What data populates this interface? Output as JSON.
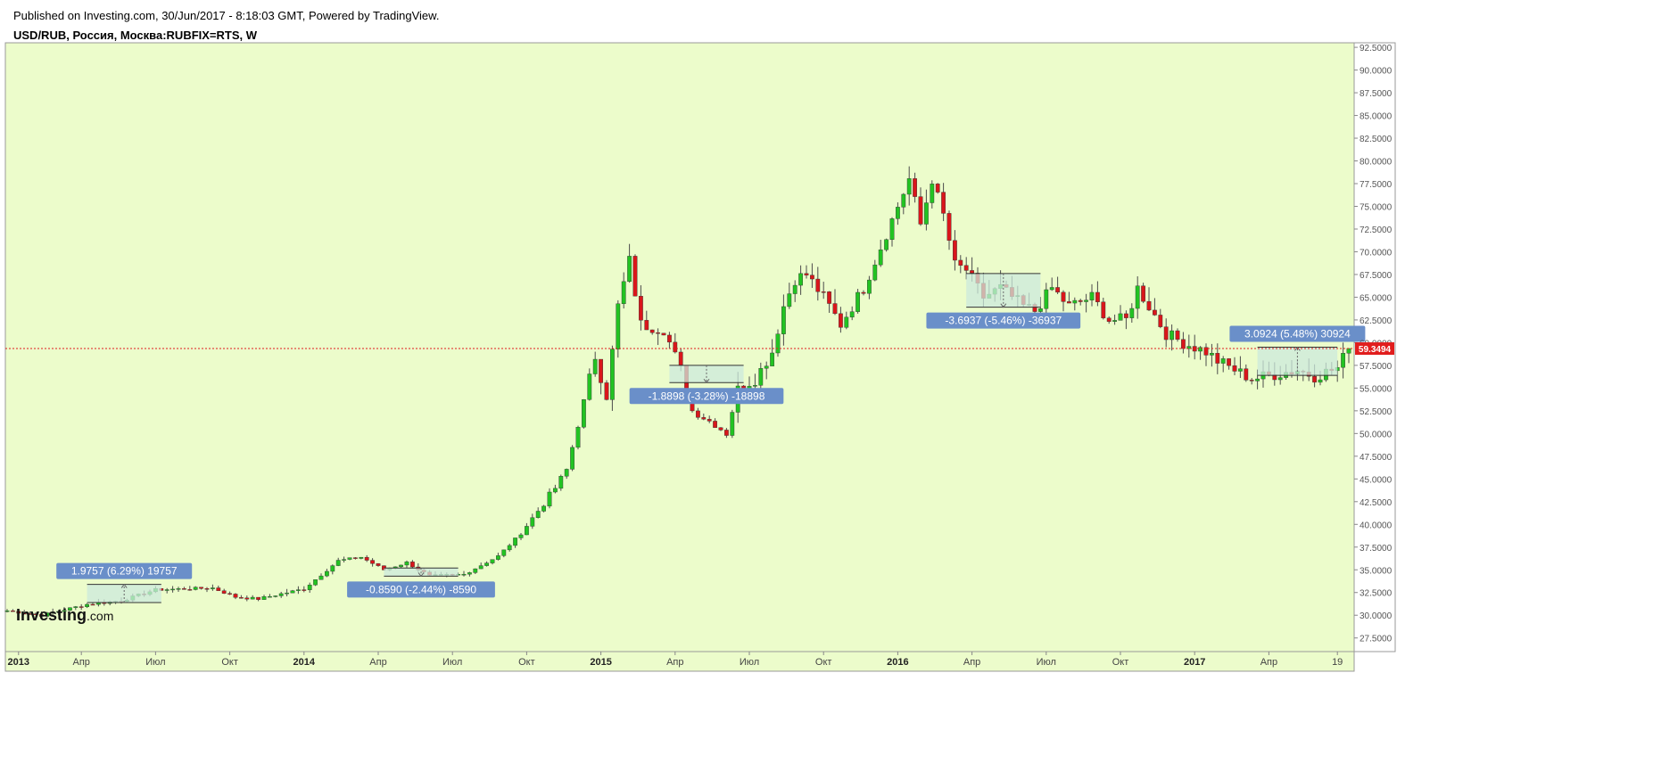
{
  "header": {
    "published": "Published on Investing.com, 30/Jun/2017 - 8:18:03 GMT, Powered by TradingView.",
    "symbol": "USD/RUB, Россия, Москва:RUBFIX=RTS, W"
  },
  "logo": {
    "brand": "Investing",
    "suffix": ".com"
  },
  "colors": {
    "plot_bg": "#ecfccb",
    "up": "#22c322",
    "down": "#d9161b",
    "wick": "#4b4b4b",
    "price_line": "#e11d1d",
    "label_bg": "#6a8fc9",
    "box_fill": "#cce9dc"
  },
  "chart_data": {
    "type": "candlestick",
    "interval": "W",
    "ylim": [
      26,
      93
    ],
    "y_ticks": [
      "27.5000",
      "30.0000",
      "32.5000",
      "35.0000",
      "37.5000",
      "40.0000",
      "42.5000",
      "45.0000",
      "47.5000",
      "50.0000",
      "52.5000",
      "55.0000",
      "57.5000",
      "60.0000",
      "62.5000",
      "65.0000",
      "67.5000",
      "70.0000",
      "72.5000",
      "75.0000",
      "77.5000",
      "80.0000",
      "82.5000",
      "85.0000",
      "87.5000",
      "90.0000",
      "92.5000"
    ],
    "x_ticks": [
      {
        "label": "2013",
        "bold": true,
        "week": 2
      },
      {
        "label": "Апр",
        "bold": false,
        "week": 13
      },
      {
        "label": "Июл",
        "bold": false,
        "week": 26
      },
      {
        "label": "Окт",
        "bold": false,
        "week": 39
      },
      {
        "label": "2014",
        "bold": true,
        "week": 52
      },
      {
        "label": "Апр",
        "bold": false,
        "week": 65
      },
      {
        "label": "Июл",
        "bold": false,
        "week": 78
      },
      {
        "label": "Окт",
        "bold": false,
        "week": 91
      },
      {
        "label": "2015",
        "bold": true,
        "week": 104
      },
      {
        "label": "Апр",
        "bold": false,
        "week": 117
      },
      {
        "label": "Июл",
        "bold": false,
        "week": 130
      },
      {
        "label": "Окт",
        "bold": false,
        "week": 143
      },
      {
        "label": "2016",
        "bold": true,
        "week": 156
      },
      {
        "label": "Апр",
        "bold": false,
        "week": 169
      },
      {
        "label": "Июл",
        "bold": false,
        "week": 182
      },
      {
        "label": "Окт",
        "bold": false,
        "week": 195
      },
      {
        "label": "2017",
        "bold": true,
        "week": 208
      },
      {
        "label": "Апр",
        "bold": false,
        "week": 221
      },
      {
        "label": "19",
        "bold": false,
        "week": 233
      }
    ],
    "last_price": {
      "value": 59.3494,
      "label": "59.3494"
    },
    "close_anchors": [
      [
        0,
        30.5
      ],
      [
        6,
        30.0
      ],
      [
        14,
        31.2
      ],
      [
        20,
        31.6
      ],
      [
        26,
        32.8
      ],
      [
        36,
        33.0
      ],
      [
        40,
        32.0
      ],
      [
        44,
        31.8
      ],
      [
        52,
        32.9
      ],
      [
        58,
        36.0
      ],
      [
        62,
        36.4
      ],
      [
        66,
        35.0
      ],
      [
        70,
        35.8
      ],
      [
        74,
        34.3
      ],
      [
        80,
        34.5
      ],
      [
        86,
        36.5
      ],
      [
        90,
        39.0
      ],
      [
        96,
        44.0
      ],
      [
        98,
        46.0
      ],
      [
        100,
        51.0
      ],
      [
        103,
        58.5
      ],
      [
        105,
        54.0
      ],
      [
        107,
        64.0
      ],
      [
        109,
        69.0
      ],
      [
        111,
        62.0
      ],
      [
        115,
        61.5
      ],
      [
        118,
        57.0
      ],
      [
        120,
        52.5
      ],
      [
        124,
        51.0
      ],
      [
        126,
        50.0
      ],
      [
        128,
        55.0
      ],
      [
        131,
        56.0
      ],
      [
        134,
        59.0
      ],
      [
        136,
        64.0
      ],
      [
        138,
        67.0
      ],
      [
        140,
        67.5
      ],
      [
        143,
        65.0
      ],
      [
        146,
        62.0
      ],
      [
        150,
        66.0
      ],
      [
        154,
        72.0
      ],
      [
        158,
        78.0
      ],
      [
        160,
        73.0
      ],
      [
        162,
        78.0
      ],
      [
        164,
        74.0
      ],
      [
        166,
        68.5
      ],
      [
        168,
        68.0
      ],
      [
        171,
        65.0
      ],
      [
        174,
        66.0
      ],
      [
        178,
        64.0
      ],
      [
        180,
        63.5
      ],
      [
        183,
        66.0
      ],
      [
        186,
        64.0
      ],
      [
        190,
        65.0
      ],
      [
        193,
        62.5
      ],
      [
        196,
        62.5
      ],
      [
        198,
        66.0
      ],
      [
        201,
        63.0
      ],
      [
        203,
        61.0
      ],
      [
        206,
        60.0
      ],
      [
        210,
        59.0
      ],
      [
        212,
        58.0
      ],
      [
        215,
        57.0
      ],
      [
        218,
        56.0
      ],
      [
        222,
        56.5
      ],
      [
        226,
        57.0
      ],
      [
        229,
        56.3
      ],
      [
        233,
        57.2
      ],
      [
        235,
        59.35
      ]
    ],
    "measurements": [
      {
        "label": "1.9757 (6.29%) 19757",
        "w0": 14,
        "w1": 27,
        "y0": 31.4,
        "y1": 33.4,
        "arrow": "up",
        "label_pos": "above"
      },
      {
        "label": "-0.8590 (-2.44%) -8590",
        "w0": 66,
        "w1": 79,
        "y0": 35.2,
        "y1": 34.3,
        "arrow": "down",
        "label_pos": "below"
      },
      {
        "label": "-1.8898 (-3.28%) -18898",
        "w0": 116,
        "w1": 129,
        "y0": 57.5,
        "y1": 55.6,
        "arrow": "down",
        "label_pos": "below"
      },
      {
        "label": "-3.6937 (-5.46%) -36937",
        "w0": 168,
        "w1": 181,
        "y0": 67.6,
        "y1": 63.9,
        "arrow": "down",
        "label_pos": "below"
      },
      {
        "label": "3.0924 (5.48%) 30924",
        "w0": 219,
        "w1": 233,
        "y0": 56.4,
        "y1": 59.5,
        "arrow": "up",
        "label_pos": "above"
      }
    ]
  }
}
